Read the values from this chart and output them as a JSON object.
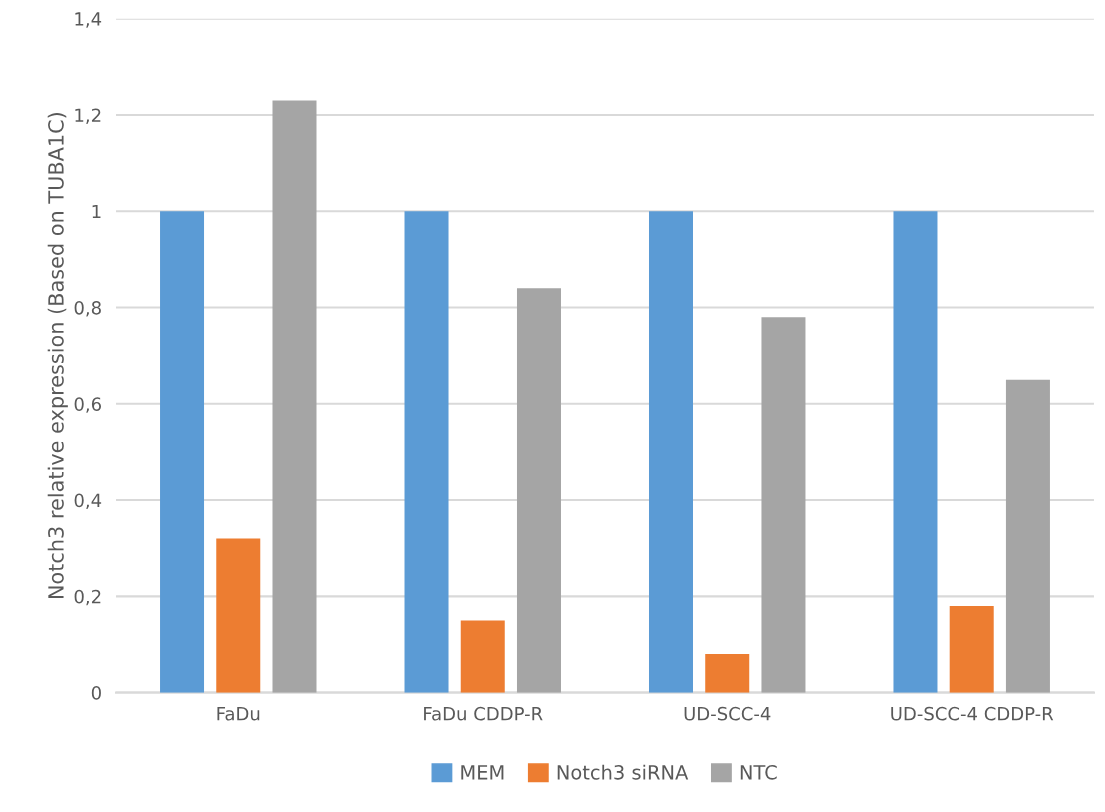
{
  "chart_data": {
    "type": "bar",
    "ylabel": "Notch3 relative expression (Based on TUBA1C)",
    "categories": [
      "FaDu",
      "FaDu CDDP-R",
      "UD-SCC-4",
      "UD-SCC-4 CDDP-R"
    ],
    "series": [
      {
        "name": "MEM",
        "color": "#5b9bd5",
        "values": [
          1,
          1,
          1,
          1
        ]
      },
      {
        "name": "Notch3 siRNA",
        "color": "#ed7d31",
        "values": [
          0.32,
          0.15,
          0.08,
          0.18
        ]
      },
      {
        "name": "NTC",
        "color": "#a5a5a5",
        "values": [
          1.23,
          0.84,
          0.78,
          0.65
        ]
      }
    ],
    "ylim": [
      0,
      1.4
    ],
    "yticks": [
      0,
      {
        "value": 0.2,
        "label": "0,2"
      },
      {
        "value": 0.4,
        "label": "0,4"
      },
      {
        "value": 0.6,
        "label": "0,6"
      },
      {
        "value": 0.8,
        "label": "0,8"
      },
      1,
      {
        "value": 1.2,
        "label": "1,2"
      },
      {
        "value": 1.4,
        "label": "1,4"
      }
    ],
    "grid": "y",
    "legend": "bottom"
  }
}
